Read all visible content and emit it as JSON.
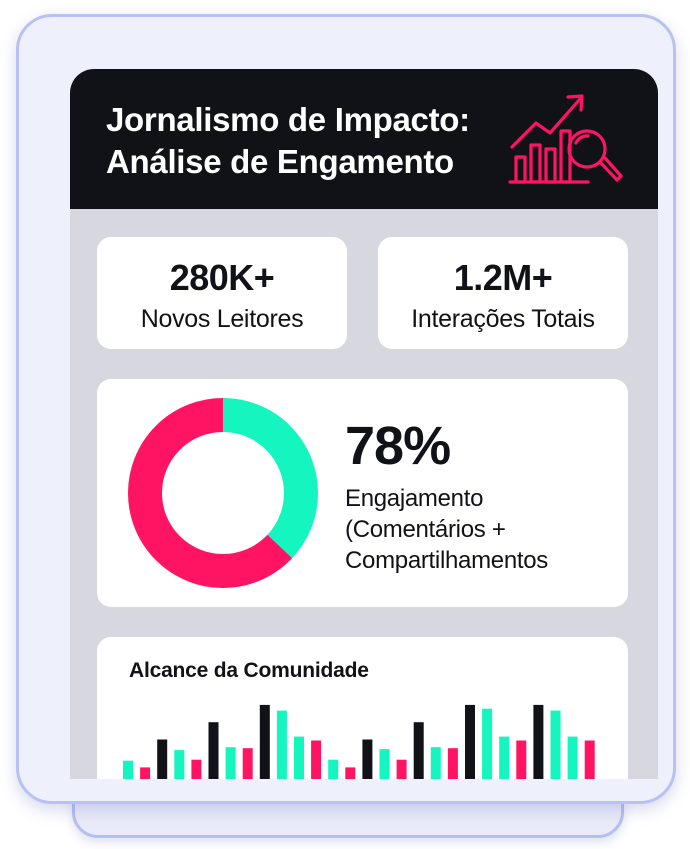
{
  "header": {
    "title_line1": "Jornalismo de Impacto:",
    "title_line2": "Análise de Engamento"
  },
  "stats": [
    {
      "value": "280K+",
      "label": "Novos Leitores"
    },
    {
      "value": "1.2M+",
      "label": "Interações Totais"
    }
  ],
  "engagement": {
    "value": "78%",
    "desc_line1": "Engajamento",
    "desc_line2": "(Comentários +",
    "desc_line3": "Compartilhamentos"
  },
  "community": {
    "title": "Alcance da Comunidade"
  },
  "colors": {
    "pink": "#ff1463",
    "teal": "#14f5bf",
    "dark": "#111218"
  },
  "chart_data": [
    {
      "type": "pie",
      "slices": [
        {
          "color": "#14f5bf",
          "value": 37
        },
        {
          "color": "#ff1463",
          "value": 63
        }
      ]
    },
    {
      "type": "bar",
      "title": "Alcance da Comunidade",
      "ylim": [
        0,
        80
      ],
      "values": [
        18,
        11,
        40,
        29,
        19,
        58,
        32,
        31,
        76,
        70,
        43,
        39,
        19,
        11,
        40,
        30,
        19,
        58,
        32,
        31,
        76,
        72,
        43,
        39,
        76,
        70,
        43,
        39
      ],
      "colors": [
        "#14f5bf",
        "#ff1463",
        "#111218",
        "#14f5bf",
        "#ff1463",
        "#111218",
        "#14f5bf",
        "#ff1463",
        "#111218",
        "#14f5bf",
        "#14f5bf",
        "#ff1463",
        "#14f5bf",
        "#ff1463",
        "#111218",
        "#14f5bf",
        "#ff1463",
        "#111218",
        "#14f5bf",
        "#ff1463",
        "#111218",
        "#14f5bf",
        "#14f5bf",
        "#ff1463",
        "#111218",
        "#14f5bf",
        "#14f5bf",
        "#ff1463"
      ]
    }
  ]
}
